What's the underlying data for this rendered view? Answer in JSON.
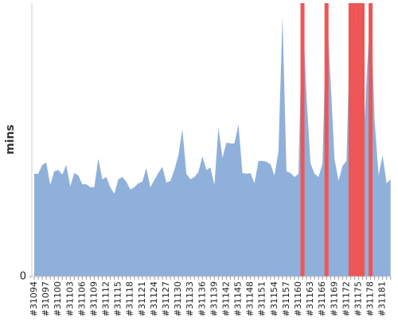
{
  "chart_data": {
    "type": "area",
    "y_label": "mins",
    "categories": [
      "#31094",
      null,
      null,
      "#31097",
      null,
      null,
      "#31100",
      null,
      null,
      "#31103",
      null,
      null,
      "#31106",
      null,
      null,
      "#31109",
      null,
      null,
      "#31112",
      null,
      null,
      "#31115",
      null,
      null,
      "#31118",
      null,
      null,
      "#31121",
      null,
      null,
      "#31124",
      null,
      null,
      "#31127",
      null,
      null,
      "#31130",
      null,
      null,
      "#31133",
      null,
      null,
      "#31136",
      null,
      null,
      "#31139",
      null,
      null,
      "#31142",
      null,
      null,
      "#31145",
      null,
      null,
      "#31148",
      null,
      null,
      "#31151",
      null,
      null,
      "#31154",
      null,
      null,
      "#31157",
      null,
      null,
      "#31160",
      null,
      null,
      "#31163",
      null,
      null,
      "#31166",
      null,
      null,
      "#31169",
      null,
      null,
      "#31172",
      null,
      null,
      "#31175",
      null,
      null,
      "#31178",
      null,
      null,
      "#31181",
      null,
      null
    ],
    "series": [
      {
        "color": "#8fb0da",
        "type": "area",
        "values": [
          37.6,
          37.6,
          40.8,
          41.7,
          33.5,
          38.5,
          39,
          37.3,
          40.8,
          33,
          37.9,
          37,
          33.8,
          33.8,
          32.7,
          32.7,
          43.1,
          35.6,
          36.4,
          32.7,
          30.3,
          35.6,
          36.4,
          34.7,
          31.8,
          32.7,
          34.1,
          34.7,
          39.7,
          32.7,
          35.3,
          37.9,
          40.2,
          34.4,
          35,
          39,
          44.3,
          53.9,
          37.6,
          35.6,
          36.4,
          38.2,
          44,
          39,
          39.9,
          33.5,
          54.5,
          43.4,
          49,
          48.7,
          48.7,
          55.7,
          37.9,
          37.6,
          37.9,
          34.1,
          42.3,
          42.3,
          42,
          41.1,
          37,
          45.8,
          95.3,
          38.5,
          37.9,
          36.4,
          37.6,
          100,
          66,
          41.4,
          37.6,
          36.4,
          41.4,
          100,
          72,
          42.9,
          35,
          40.5,
          42.3,
          100,
          100,
          83.7,
          42.9,
          72,
          100,
          57.4,
          37,
          44.3,
          34.1,
          35.6
        ]
      },
      {
        "color": "#f05555",
        "type": "bar",
        "values": [
          null,
          null,
          null,
          null,
          null,
          null,
          null,
          null,
          null,
          null,
          null,
          null,
          null,
          null,
          null,
          null,
          null,
          null,
          null,
          null,
          null,
          null,
          null,
          null,
          null,
          null,
          null,
          null,
          null,
          null,
          null,
          null,
          null,
          null,
          null,
          null,
          null,
          null,
          null,
          null,
          null,
          null,
          null,
          null,
          null,
          null,
          null,
          null,
          null,
          null,
          null,
          null,
          null,
          null,
          null,
          null,
          null,
          null,
          null,
          null,
          null,
          null,
          null,
          null,
          null,
          null,
          null,
          100,
          null,
          null,
          null,
          null,
          null,
          100,
          null,
          null,
          null,
          null,
          null,
          100,
          100,
          100,
          100,
          null,
          100,
          null,
          null,
          null,
          null,
          null
        ]
      }
    ],
    "ylim": [
      0,
      100
    ],
    "yticks": [
      0
    ]
  }
}
